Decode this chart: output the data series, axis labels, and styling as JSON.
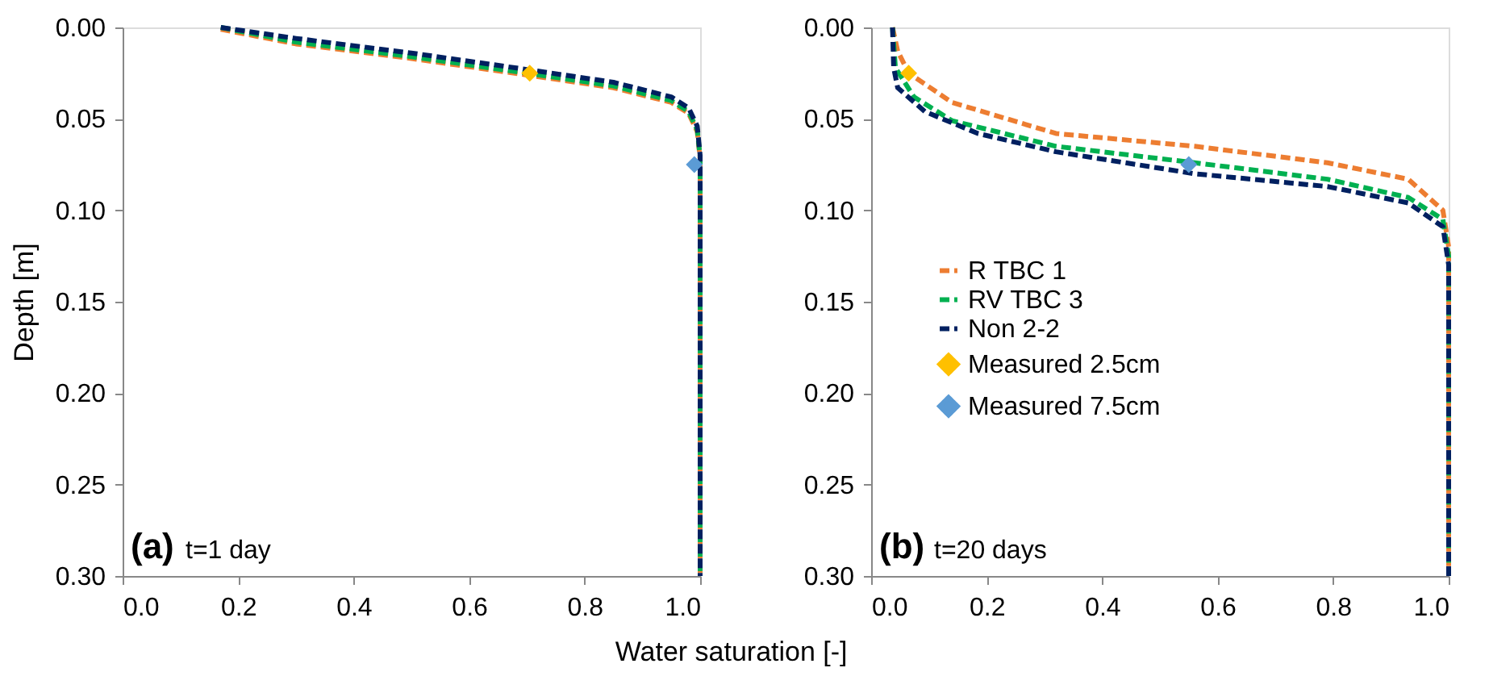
{
  "chart_data": [
    {
      "type": "line",
      "ylabel": "Depth [m]",
      "xlabel": "Water saturation [-]",
      "annotations": [
        "(a)",
        "t=1 day"
      ],
      "xlim": [
        0,
        1
      ],
      "ylim": [
        0.3,
        0.0
      ],
      "xticks": [
        {
          "value": 0,
          "label": "0.0"
        },
        {
          "value": 0.2,
          "label": "0.2"
        },
        {
          "value": 0.4,
          "label": "0.4"
        },
        {
          "value": 0.6,
          "label": "0.6"
        },
        {
          "value": 0.8,
          "label": "0.8"
        },
        {
          "value": 1,
          "label": "1.0"
        }
      ],
      "yticks": [
        {
          "value": 0,
          "label": "0.00"
        },
        {
          "value": 0.05,
          "label": "0.05"
        },
        {
          "value": 0.1,
          "label": "0.10"
        },
        {
          "value": 0.15,
          "label": "0.15"
        },
        {
          "value": 0.2,
          "label": "0.20"
        },
        {
          "value": 0.25,
          "label": "0.25"
        },
        {
          "value": 0.3,
          "label": "0.30"
        }
      ],
      "grid": false,
      "legend": false,
      "line_style": "dashed",
      "series": [
        {
          "color": "#ed7d31",
          "x": [
            0.17,
            0.3,
            0.5,
            0.7,
            0.85,
            0.95,
            0.98,
            0.995,
            1.0,
            1.0
          ],
          "values": [
            0.001,
            0.009,
            0.017,
            0.026,
            0.033,
            0.041,
            0.047,
            0.057,
            0.072,
            0.3
          ]
        },
        {
          "color": "#00b050",
          "x": [
            0.17,
            0.3,
            0.5,
            0.7,
            0.85,
            0.95,
            0.98,
            0.995,
            1.0,
            1.0
          ],
          "values": [
            0.0,
            0.008,
            0.016,
            0.025,
            0.032,
            0.04,
            0.046,
            0.056,
            0.071,
            0.3
          ]
        },
        {
          "color": "#002060",
          "x": [
            0.17,
            0.3,
            0.5,
            0.7,
            0.85,
            0.95,
            0.98,
            0.995,
            1.0,
            1.0
          ],
          "values": [
            0.0,
            0.006,
            0.014,
            0.023,
            0.03,
            0.038,
            0.044,
            0.054,
            0.07,
            0.3
          ]
        },
        {
          "type": "scatter",
          "marker": "diamond",
          "color": "#ffc000",
          "x": [
            0.705
          ],
          "values": [
            0.025
          ]
        },
        {
          "type": "scatter",
          "marker": "diamond",
          "color": "#5b9bd5",
          "x": [
            0.99
          ],
          "values": [
            0.075
          ]
        }
      ]
    },
    {
      "type": "line",
      "annotations": [
        "(b)",
        "t=20 days"
      ],
      "xlim": [
        0,
        1
      ],
      "ylim": [
        0.3,
        0.0
      ],
      "xticks": [
        {
          "value": 0,
          "label": "0.0"
        },
        {
          "value": 0.2,
          "label": "0.2"
        },
        {
          "value": 0.4,
          "label": "0.4"
        },
        {
          "value": 0.6,
          "label": "0.6"
        },
        {
          "value": 0.8,
          "label": "0.8"
        },
        {
          "value": 1,
          "label": "1.0"
        }
      ],
      "yticks": [
        {
          "value": 0,
          "label": "0.00"
        },
        {
          "value": 0.05,
          "label": "0.05"
        },
        {
          "value": 0.1,
          "label": "0.10"
        },
        {
          "value": 0.15,
          "label": "0.15"
        },
        {
          "value": 0.2,
          "label": "0.20"
        },
        {
          "value": 0.25,
          "label": "0.25"
        },
        {
          "value": 0.3,
          "label": "0.30"
        }
      ],
      "grid": false,
      "legend": "left",
      "line_style": "dashed",
      "series": [
        {
          "name": "R TBC 1",
          "color": "#ed7d31",
          "x": [
            0.037,
            0.046,
            0.065,
            0.14,
            0.32,
            0.56,
            0.79,
            0.93,
            0.99,
            1.0,
            1.0
          ],
          "values": [
            0.0,
            0.013,
            0.025,
            0.041,
            0.058,
            0.065,
            0.074,
            0.083,
            0.1,
            0.12,
            0.3
          ]
        },
        {
          "name": "RV TBC 3",
          "color": "#00b050",
          "x": [
            0.037,
            0.042,
            0.074,
            0.14,
            0.32,
            0.56,
            0.79,
            0.93,
            0.99,
            1.0,
            1.0
          ],
          "values": [
            0.0,
            0.022,
            0.038,
            0.051,
            0.065,
            0.074,
            0.083,
            0.093,
            0.105,
            0.125,
            0.3
          ]
        },
        {
          "name": "Non 2-2",
          "color": "#002060",
          "x": [
            0.037,
            0.039,
            0.046,
            0.093,
            0.185,
            0.32,
            0.56,
            0.79,
            0.93,
            0.99,
            1.0,
            1.0
          ],
          "values": [
            0.0,
            0.022,
            0.033,
            0.046,
            0.058,
            0.068,
            0.08,
            0.087,
            0.096,
            0.109,
            0.13,
            0.3
          ]
        },
        {
          "type": "scatter",
          "marker": "diamond",
          "name": "Measured 2.5cm",
          "color": "#ffc000",
          "x": [
            0.065
          ],
          "values": [
            0.025
          ]
        },
        {
          "type": "scatter",
          "marker": "diamond",
          "name": "Measured 7.5cm",
          "color": "#5b9bd5",
          "x": [
            0.55
          ],
          "values": [
            0.075
          ]
        }
      ]
    }
  ]
}
